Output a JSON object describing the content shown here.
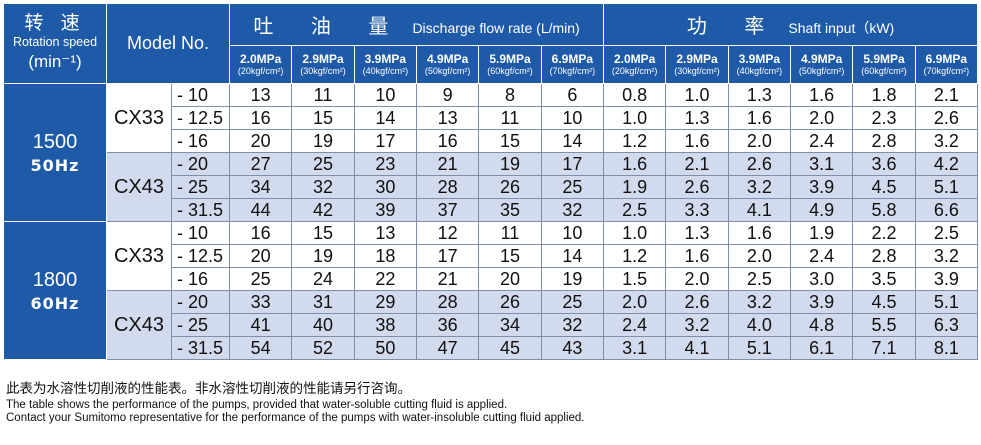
{
  "header": {
    "speed_cn": "转 速",
    "speed_en": "Rotation speed",
    "speed_unit": "(min⁻¹)",
    "model": "Model No.",
    "flow_cn": "吐 油 量",
    "flow_en": "Discharge flow rate (L/min)",
    "power_cn": "功 率",
    "power_en": "Shaft input（kW)",
    "pressures": [
      {
        "mpa": "2.0MPa",
        "kgf": "(20kgf/cm²)"
      },
      {
        "mpa": "2.9MPa",
        "kgf": "(30kgf/cm²)"
      },
      {
        "mpa": "3.9MPa",
        "kgf": "(40kgf/cm²)"
      },
      {
        "mpa": "4.9MPa",
        "kgf": "(50kgf/cm²)"
      },
      {
        "mpa": "5.9MPa",
        "kgf": "(60kgf/cm²)"
      },
      {
        "mpa": "6.9MPa",
        "kgf": "(70kgf/cm²)"
      }
    ]
  },
  "speeds": [
    {
      "rpm": "1500",
      "hz": "50Hz",
      "models": [
        {
          "name": "CX33",
          "rows": [
            {
              "variant": "- 10",
              "flow": [
                "13",
                "11",
                "10",
                "9",
                "8",
                "6"
              ],
              "power": [
                "0.8",
                "1.0",
                "1.3",
                "1.6",
                "1.8",
                "2.1"
              ]
            },
            {
              "variant": "- 12.5",
              "flow": [
                "16",
                "15",
                "14",
                "13",
                "11",
                "10"
              ],
              "power": [
                "1.0",
                "1.3",
                "1.6",
                "2.0",
                "2.3",
                "2.6"
              ]
            },
            {
              "variant": "- 16",
              "flow": [
                "20",
                "19",
                "17",
                "16",
                "15",
                "14"
              ],
              "power": [
                "1.2",
                "1.6",
                "2.0",
                "2.4",
                "2.8",
                "3.2"
              ]
            }
          ]
        },
        {
          "name": "CX43",
          "rows": [
            {
              "variant": "- 20",
              "flow": [
                "27",
                "25",
                "23",
                "21",
                "19",
                "17"
              ],
              "power": [
                "1.6",
                "2.1",
                "2.6",
                "3.1",
                "3.6",
                "4.2"
              ]
            },
            {
              "variant": "- 25",
              "flow": [
                "34",
                "32",
                "30",
                "28",
                "26",
                "25"
              ],
              "power": [
                "1.9",
                "2.6",
                "3.2",
                "3.9",
                "4.5",
                "5.1"
              ]
            },
            {
              "variant": "- 31.5",
              "flow": [
                "44",
                "42",
                "39",
                "37",
                "35",
                "32"
              ],
              "power": [
                "2.5",
                "3.3",
                "4.1",
                "4.9",
                "5.8",
                "6.6"
              ]
            }
          ]
        }
      ]
    },
    {
      "rpm": "1800",
      "hz": "60Hz",
      "models": [
        {
          "name": "CX33",
          "rows": [
            {
              "variant": "- 10",
              "flow": [
                "16",
                "15",
                "13",
                "12",
                "11",
                "10"
              ],
              "power": [
                "1.0",
                "1.3",
                "1.6",
                "1.9",
                "2.2",
                "2.5"
              ]
            },
            {
              "variant": "- 12.5",
              "flow": [
                "20",
                "19",
                "18",
                "17",
                "15",
                "14"
              ],
              "power": [
                "1.2",
                "1.6",
                "2.0",
                "2.4",
                "2.8",
                "3.2"
              ]
            },
            {
              "variant": "- 16",
              "flow": [
                "25",
                "24",
                "22",
                "21",
                "20",
                "19"
              ],
              "power": [
                "1.5",
                "2.0",
                "2.5",
                "3.0",
                "3.5",
                "3.9"
              ]
            }
          ]
        },
        {
          "name": "CX43",
          "rows": [
            {
              "variant": "- 20",
              "flow": [
                "33",
                "31",
                "29",
                "28",
                "26",
                "25"
              ],
              "power": [
                "2.0",
                "2.6",
                "3.2",
                "3.9",
                "4.5",
                "5.1"
              ]
            },
            {
              "variant": "- 25",
              "flow": [
                "41",
                "40",
                "38",
                "36",
                "34",
                "32"
              ],
              "power": [
                "2.4",
                "3.2",
                "4.0",
                "4.8",
                "5.5",
                "6.3"
              ]
            },
            {
              "variant": "- 31.5",
              "flow": [
                "54",
                "52",
                "50",
                "47",
                "45",
                "43"
              ],
              "power": [
                "3.1",
                "4.1",
                "5.1",
                "6.1",
                "7.1",
                "8.1"
              ]
            }
          ]
        }
      ]
    }
  ],
  "notes": {
    "cn": "此表为水溶性切削液的性能表。非水溶性切削液的性能请另行咨询。",
    "en1": "The table shows the performance of the pumps, provided that water-soluble cutting fluid is applied.",
    "en2": "Contact your Sumitomo representative for the performance of the pumps with water-insoluble cutting fluid applied."
  }
}
